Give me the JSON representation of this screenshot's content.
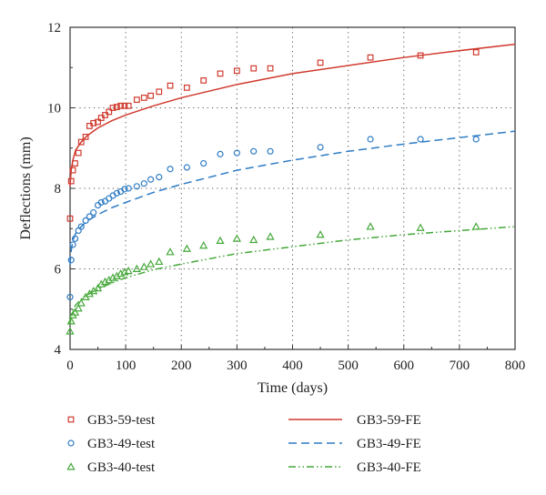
{
  "chart_data": {
    "type": "scatter",
    "title": "",
    "xlabel": "Time (days)",
    "ylabel": "Deflections (mm)",
    "xlim": [
      0,
      800
    ],
    "ylim": [
      4,
      12
    ],
    "xticks": [
      0,
      100,
      200,
      300,
      400,
      500,
      600,
      700,
      800
    ],
    "yticks": [
      4,
      6,
      8,
      10,
      12
    ],
    "grid": "dotted",
    "legend_position": "bottom",
    "series": [
      {
        "name": "GB3-59-test",
        "kind": "points",
        "marker": "square",
        "color": "#d03a2e",
        "x": [
          0,
          2,
          5,
          9,
          15,
          20,
          28,
          35,
          42,
          50,
          56,
          63,
          70,
          77,
          84,
          91,
          98,
          105,
          120,
          133,
          145,
          160,
          180,
          210,
          240,
          270,
          300,
          330,
          360,
          450,
          540,
          630,
          730
        ],
        "y": [
          7.25,
          8.18,
          8.45,
          8.62,
          8.88,
          9.15,
          9.28,
          9.55,
          9.62,
          9.65,
          9.75,
          9.82,
          9.9,
          10.0,
          10.02,
          10.05,
          10.05,
          10.05,
          10.2,
          10.25,
          10.3,
          10.4,
          10.55,
          10.5,
          10.68,
          10.85,
          10.92,
          10.98,
          10.98,
          11.12,
          11.25,
          11.3,
          11.38
        ]
      },
      {
        "name": "GB3-49-test",
        "kind": "points",
        "marker": "circle",
        "color": "#2e7cc4",
        "x": [
          0,
          2,
          5,
          9,
          15,
          20,
          28,
          35,
          42,
          50,
          56,
          63,
          70,
          77,
          84,
          91,
          98,
          105,
          120,
          133,
          145,
          160,
          180,
          210,
          240,
          270,
          300,
          330,
          360,
          450,
          540,
          630,
          730
        ],
        "y": [
          5.3,
          6.22,
          6.6,
          6.75,
          6.95,
          7.05,
          7.2,
          7.3,
          7.4,
          7.58,
          7.65,
          7.68,
          7.75,
          7.82,
          7.88,
          7.92,
          7.98,
          8.0,
          8.05,
          8.12,
          8.22,
          8.28,
          8.48,
          8.52,
          8.62,
          8.85,
          8.88,
          8.92,
          8.92,
          9.02,
          9.22,
          9.22,
          9.22
        ]
      },
      {
        "name": "GB3-40-test",
        "kind": "points",
        "marker": "triangle",
        "color": "#45a83a",
        "x": [
          0,
          2,
          5,
          9,
          15,
          20,
          28,
          35,
          42,
          50,
          56,
          63,
          70,
          77,
          84,
          91,
          98,
          105,
          120,
          133,
          145,
          160,
          180,
          210,
          240,
          270,
          300,
          330,
          360,
          450,
          540,
          630,
          730
        ],
        "y": [
          4.45,
          4.7,
          4.85,
          4.92,
          5.02,
          5.15,
          5.3,
          5.38,
          5.45,
          5.52,
          5.62,
          5.68,
          5.72,
          5.78,
          5.82,
          5.88,
          5.92,
          5.95,
          6.0,
          6.05,
          6.12,
          6.18,
          6.42,
          6.5,
          6.58,
          6.7,
          6.75,
          6.72,
          6.8,
          6.85,
          7.05,
          7.02,
          7.05
        ]
      },
      {
        "name": "GB3-59-FE",
        "kind": "line",
        "dash": "solid",
        "color": "#d03a2e",
        "x": [
          0,
          2,
          5,
          10,
          20,
          30,
          50,
          75,
          100,
          150,
          200,
          300,
          400,
          500,
          600,
          700,
          800
        ],
        "y": [
          8.05,
          8.45,
          8.7,
          8.95,
          9.15,
          9.3,
          9.5,
          9.68,
          9.82,
          10.05,
          10.25,
          10.58,
          10.85,
          11.05,
          11.25,
          11.42,
          11.58
        ]
      },
      {
        "name": "GB3-49-FE",
        "kind": "line",
        "dash": "dashed",
        "color": "#2e7cc4",
        "x": [
          0,
          2,
          5,
          10,
          20,
          30,
          50,
          75,
          100,
          150,
          200,
          300,
          400,
          500,
          600,
          700,
          800
        ],
        "y": [
          6.1,
          6.45,
          6.7,
          6.88,
          7.05,
          7.18,
          7.35,
          7.52,
          7.65,
          7.9,
          8.1,
          8.45,
          8.7,
          8.92,
          9.1,
          9.26,
          9.42
        ]
      },
      {
        "name": "GB3-40-FE",
        "kind": "line",
        "dash": "dashdotdot",
        "color": "#45a83a",
        "x": [
          0,
          2,
          5,
          10,
          20,
          30,
          50,
          75,
          100,
          150,
          200,
          300,
          400,
          500,
          600,
          700,
          800
        ],
        "y": [
          4.62,
          4.85,
          4.98,
          5.1,
          5.25,
          5.35,
          5.5,
          5.65,
          5.78,
          5.98,
          6.12,
          6.38,
          6.55,
          6.72,
          6.85,
          6.95,
          7.05
        ]
      }
    ]
  }
}
